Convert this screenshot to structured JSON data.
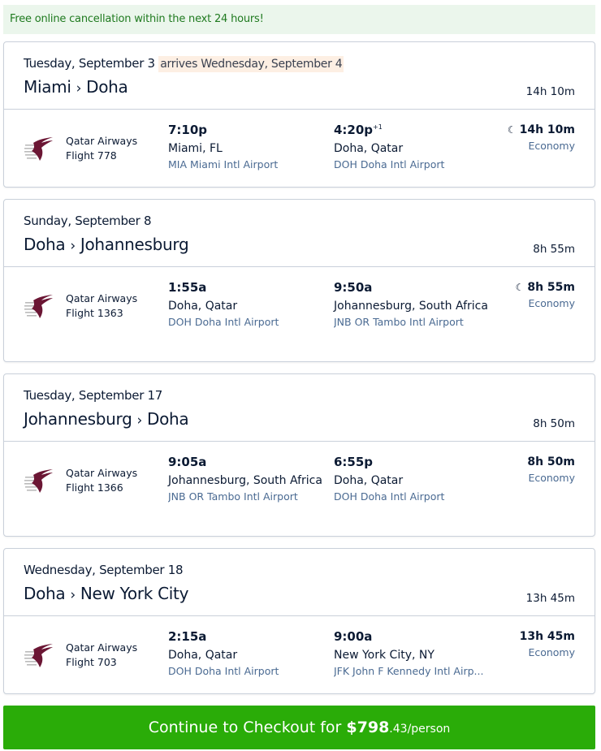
{
  "banner": "Free online cancellation within the next 24 hours!",
  "flights": [
    {
      "date": "Tuesday, September 3",
      "arrives": "arrives Wednesday, September 4",
      "from": "Miami",
      "to": "Doha",
      "duration": "14h 10m",
      "airline": "Qatar Airways",
      "flight": "Flight 778",
      "dep_time": "7:10p",
      "dep_city": "Miami, FL",
      "dep_airport": "MIA Miami Intl Airport",
      "arr_time": "4:20p",
      "arr_offset": "+1",
      "arr_city": "Doha, Qatar",
      "arr_airport": "DOH Doha Intl Airport",
      "overnight": true,
      "cabin": "Economy"
    },
    {
      "date": "Sunday, September 8",
      "from": "Doha",
      "to": "Johannesburg",
      "duration": "8h 55m",
      "airline": "Qatar Airways",
      "flight": "Flight 1363",
      "dep_time": "1:55a",
      "dep_city": "Doha, Qatar",
      "dep_airport": "DOH Doha Intl Airport",
      "arr_time": "9:50a",
      "arr_city": "Johannesburg, South Africa",
      "arr_airport": "JNB OR Tambo Intl Airport",
      "overnight": true,
      "cabin": "Economy"
    },
    {
      "date": "Tuesday, September 17",
      "from": "Johannesburg",
      "to": "Doha",
      "duration": "8h 50m",
      "airline": "Qatar Airways",
      "flight": "Flight 1366",
      "dep_time": "9:05a",
      "dep_city": "Johannesburg, South Africa",
      "dep_airport": "JNB OR Tambo Intl Airport",
      "arr_time": "6:55p",
      "arr_city": "Doha, Qatar",
      "arr_airport": "DOH Doha Intl Airport",
      "overnight": false,
      "cabin": "Economy"
    },
    {
      "date": "Wednesday, September 18",
      "from": "Doha",
      "to": "New York City",
      "duration": "13h 45m",
      "airline": "Qatar Airways",
      "flight": "Flight 703",
      "dep_time": "2:15a",
      "dep_city": "Doha, Qatar",
      "dep_airport": "DOH Doha Intl Airport",
      "arr_time": "9:00a",
      "arr_city": "New York City, NY",
      "arr_airport": "JFK John F Kennedy Intl Airp...",
      "overnight": false,
      "cabin": "Economy"
    }
  ],
  "checkout": {
    "label": "Continue to Checkout for ",
    "price": "$798",
    "cents": ".43",
    "unit": "/person"
  },
  "colors": {
    "accent": "#2aac08",
    "banner_text": "#1f7a1f",
    "link": "#4a6a92",
    "brand": "#6b1634"
  }
}
